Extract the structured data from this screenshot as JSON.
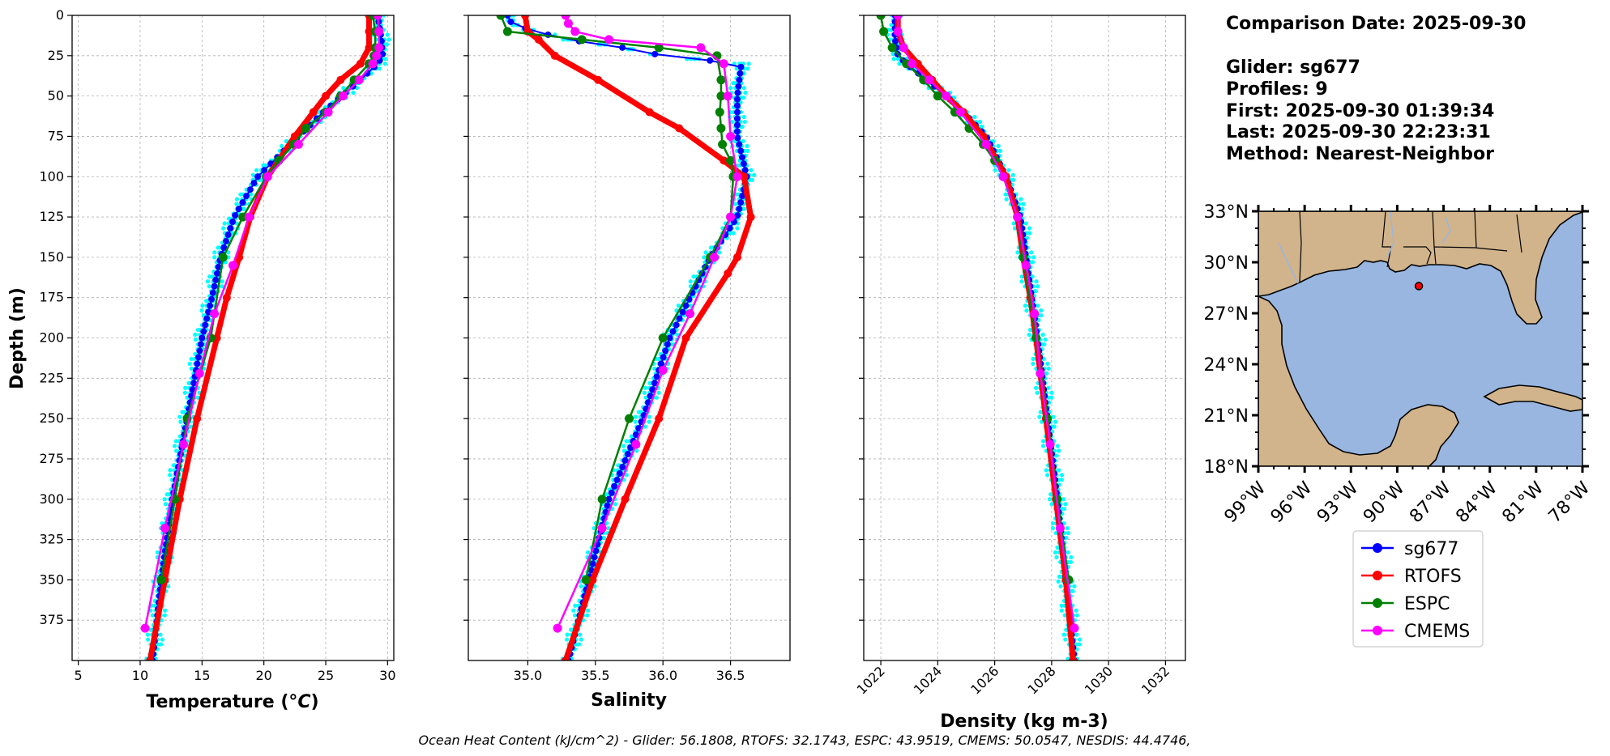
{
  "info": {
    "comparison": "Comparison Date: 2025-09-30",
    "glider": "Glider: sg677",
    "profiles": "Profiles: 9",
    "first": "First: 2025-09-30 01:39:34",
    "last": "Last: 2025-09-30 22:23:31",
    "method": "Method: Nearest-Neighbor"
  },
  "footer": "Ocean Heat Content (kJ/cm^2) - Glider: 56.1808,  RTOFS: 32.1743,  ESPC: 43.9519,  CMEMS: 50.0547,  NESDIS: 44.4746,",
  "colors": {
    "sg677": "#0000ff",
    "sg677_raw": "#00ffff",
    "RTOFS": "#ff0000",
    "ESPC": "#008000",
    "CMEMS": "#ff00ff",
    "ocean": "#98b6e0",
    "land": "#d2b48c",
    "grid": "#b0b0b0"
  },
  "chart_data": [
    {
      "type": "line",
      "name": "temperature",
      "xlabel": "Temperature",
      "xlabel_unit": "°C",
      "ylabel": "Depth (m)",
      "xlim": [
        4.5,
        30.5
      ],
      "ylim": [
        400,
        0
      ],
      "xticks": [
        5,
        10,
        15,
        20,
        25,
        30
      ],
      "xtick_labels": [
        "5",
        "10",
        "15",
        "20",
        "25",
        "30"
      ],
      "yticks": [
        0,
        25,
        50,
        75,
        100,
        125,
        150,
        175,
        200,
        225,
        250,
        275,
        300,
        325,
        350,
        375
      ],
      "ytick_labels": [
        "0",
        "25",
        "50",
        "75",
        "100",
        "125",
        "150",
        "175",
        "200",
        "225",
        "250",
        "275",
        "300",
        "325",
        "350",
        "375"
      ],
      "grid": true,
      "series": [
        {
          "name": "sg677",
          "depth": [
            0,
            15,
            25,
            30,
            40,
            50,
            60,
            75,
            100,
            125,
            150,
            175,
            200,
            250,
            300,
            350,
            400
          ],
          "values": [
            29.2,
            29.5,
            29.6,
            29.2,
            27.8,
            26.3,
            24.8,
            22.8,
            19.5,
            17.6,
            16.5,
            15.8,
            15.0,
            13.8,
            12.6,
            11.7,
            11.0
          ]
        },
        {
          "name": "RTOFS",
          "depth": [
            0,
            10,
            20,
            30,
            40,
            50,
            60,
            75,
            100,
            125,
            150,
            175,
            200,
            250,
            300,
            350,
            400
          ],
          "values": [
            28.5,
            28.5,
            28.5,
            27.8,
            26.2,
            25.0,
            24.0,
            22.5,
            20.3,
            18.9,
            18.0,
            17.0,
            16.2,
            14.6,
            13.2,
            12.0,
            10.8
          ]
        },
        {
          "name": "ESPC",
          "depth": [
            0,
            10,
            20,
            25,
            30,
            40,
            50,
            60,
            70,
            80,
            90,
            100,
            125,
            150,
            200,
            250,
            300,
            350
          ],
          "values": [
            28.8,
            29.0,
            29.0,
            28.9,
            28.5,
            27.3,
            26.2,
            25.0,
            23.4,
            22.4,
            21.2,
            20.2,
            18.3,
            16.7,
            15.7,
            13.8,
            12.8,
            11.7
          ]
        },
        {
          "name": "CMEMS",
          "depth": [
            0,
            10,
            20,
            25,
            30,
            40,
            50,
            60,
            80,
            100,
            125,
            155,
            185,
            222,
            266,
            318,
            380
          ],
          "values": [
            29.2,
            29.3,
            29.3,
            29.1,
            28.8,
            27.7,
            26.4,
            25.2,
            22.8,
            20.3,
            18.8,
            17.5,
            16.0,
            14.8,
            13.5,
            12.0,
            10.4
          ]
        }
      ]
    },
    {
      "type": "line",
      "name": "salinity",
      "xlabel": "Salinity",
      "xlim": [
        34.56,
        36.94
      ],
      "ylim": [
        400,
        0
      ],
      "xticks": [
        35.0,
        35.5,
        36.0,
        36.5
      ],
      "xtick_labels": [
        "35.0",
        "35.5",
        "36.0",
        "36.5"
      ],
      "grid": true,
      "series": [
        {
          "name": "sg677",
          "depth": [
            0,
            5,
            10,
            15,
            20,
            25,
            30,
            50,
            75,
            100,
            125,
            150,
            175,
            200,
            250,
            300,
            350,
            400
          ],
          "values": [
            34.85,
            34.88,
            35.05,
            35.3,
            35.7,
            36.0,
            36.58,
            36.55,
            36.55,
            36.62,
            36.55,
            36.35,
            36.2,
            36.05,
            35.85,
            35.6,
            35.45,
            35.3
          ]
        },
        {
          "name": "RTOFS",
          "depth": [
            0,
            10,
            15,
            25,
            40,
            60,
            70,
            90,
            100,
            125,
            150,
            160,
            200,
            250,
            300,
            350,
            400
          ],
          "values": [
            34.98,
            35.0,
            35.08,
            35.2,
            35.52,
            35.9,
            36.12,
            36.45,
            36.6,
            36.65,
            36.55,
            36.48,
            36.17,
            35.97,
            35.72,
            35.48,
            35.28
          ]
        },
        {
          "name": "ESPC",
          "depth": [
            0,
            10,
            15,
            20,
            25,
            40,
            50,
            60,
            70,
            80,
            90,
            100,
            125,
            150,
            200,
            250,
            300,
            350
          ],
          "values": [
            34.8,
            34.85,
            35.4,
            35.97,
            36.4,
            36.43,
            36.43,
            36.42,
            36.43,
            36.44,
            36.5,
            36.52,
            36.5,
            36.35,
            36.0,
            35.75,
            35.55,
            35.43
          ]
        },
        {
          "name": "CMEMS",
          "depth": [
            0,
            5,
            10,
            15,
            20,
            30,
            50,
            75,
            100,
            125,
            150,
            185,
            220,
            266,
            318,
            380
          ],
          "values": [
            35.28,
            35.3,
            35.35,
            35.6,
            36.28,
            36.45,
            36.48,
            36.5,
            36.55,
            36.5,
            36.38,
            36.2,
            36.0,
            35.8,
            35.55,
            35.22
          ]
        }
      ]
    },
    {
      "type": "line",
      "name": "density",
      "xlabel": "Density (kg m-3)",
      "xlim": [
        1021.4,
        1032.7
      ],
      "ylim": [
        400,
        0
      ],
      "xticks": [
        1022,
        1024,
        1026,
        1028,
        1030,
        1032
      ],
      "xtick_labels": [
        "1022",
        "1024",
        "1026",
        "1028",
        "1030",
        "1032"
      ],
      "grid": true,
      "series": [
        {
          "name": "sg677",
          "depth": [
            0,
            15,
            25,
            30,
            40,
            50,
            60,
            75,
            100,
            125,
            150,
            175,
            200,
            250,
            300,
            350,
            400
          ],
          "values": [
            1022.5,
            1022.5,
            1022.6,
            1022.9,
            1023.6,
            1024.3,
            1024.9,
            1025.7,
            1026.4,
            1026.9,
            1027.1,
            1027.3,
            1027.5,
            1027.85,
            1028.2,
            1028.5,
            1028.8
          ]
        },
        {
          "name": "RTOFS",
          "depth": [
            0,
            10,
            20,
            30,
            40,
            50,
            60,
            75,
            100,
            125,
            150,
            175,
            200,
            250,
            300,
            350,
            400
          ],
          "values": [
            1022.6,
            1022.6,
            1022.8,
            1023.3,
            1023.8,
            1024.3,
            1024.9,
            1025.6,
            1026.4,
            1026.8,
            1027.0,
            1027.25,
            1027.45,
            1027.8,
            1028.15,
            1028.5,
            1028.75
          ]
        },
        {
          "name": "ESPC",
          "depth": [
            0,
            10,
            20,
            30,
            40,
            50,
            60,
            70,
            80,
            90,
            100,
            125,
            150,
            200,
            250,
            300,
            350
          ],
          "values": [
            1022.0,
            1022.1,
            1022.4,
            1022.9,
            1023.5,
            1024.0,
            1024.6,
            1025.1,
            1025.6,
            1026.0,
            1026.3,
            1026.8,
            1027.0,
            1027.45,
            1027.85,
            1028.2,
            1028.6
          ]
        },
        {
          "name": "CMEMS",
          "depth": [
            0,
            10,
            20,
            30,
            40,
            50,
            60,
            80,
            100,
            125,
            155,
            185,
            222,
            266,
            318,
            380
          ],
          "values": [
            1022.6,
            1022.6,
            1022.8,
            1023.1,
            1023.7,
            1024.3,
            1024.8,
            1025.7,
            1026.3,
            1026.8,
            1027.1,
            1027.4,
            1027.6,
            1027.95,
            1028.3,
            1028.8
          ]
        }
      ]
    },
    {
      "type": "map",
      "name": "location-map",
      "lat_ticks": [
        "18°N",
        "21°N",
        "24°N",
        "27°N",
        "30°N",
        "33°N"
      ],
      "lon_ticks": [
        "99°W",
        "96°W",
        "93°W",
        "90°W",
        "87°W",
        "84°W",
        "81°W",
        "78°W"
      ],
      "lat_range": [
        18,
        33
      ],
      "lon_range": [
        -99,
        -78
      ],
      "glider_position": {
        "lat": 28.6,
        "lon": -88.6
      }
    }
  ],
  "legend": [
    "sg677",
    "RTOFS",
    "ESPC",
    "CMEMS"
  ]
}
